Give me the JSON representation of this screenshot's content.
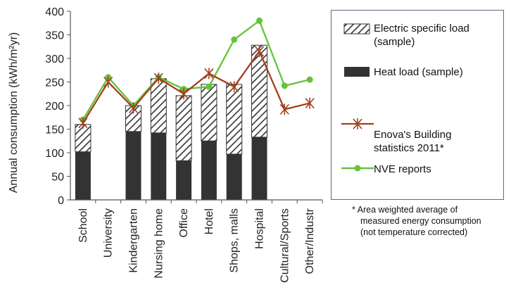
{
  "chart_data": {
    "type": "bar",
    "categories": [
      "School",
      "University",
      "Kindergarten",
      "Nursing home",
      "Office",
      "Hotel",
      "Shops, malls",
      "Hospital",
      "Cultural/Sports",
      "Other/Industr"
    ],
    "ylabel": "Annual consumption (kWh/m²yr)",
    "ylim": [
      0,
      400
    ],
    "yticks": [
      0,
      50,
      100,
      150,
      200,
      250,
      300,
      350,
      400
    ],
    "grid": false,
    "legend_position": "right",
    "series": [
      {
        "name": "Heat load (sample)",
        "kind": "stacked-bar",
        "color": "#333333",
        "values": [
          102,
          null,
          145,
          142,
          83,
          125,
          97,
          133,
          null,
          null
        ]
      },
      {
        "name": "Electric specific load (sample)",
        "kind": "stacked-bar",
        "pattern": "diagonal-hatch",
        "values": [
          58,
          null,
          55,
          115,
          138,
          120,
          148,
          195,
          null,
          null
        ]
      },
      {
        "name": "Enova's Building statistics 2011*",
        "kind": "line",
        "marker": "asterisk",
        "color": "#a0411f",
        "values": [
          163,
          250,
          195,
          258,
          225,
          268,
          240,
          315,
          192,
          205
        ]
      },
      {
        "name": "NVE reports",
        "kind": "line",
        "marker": "circle",
        "color": "#66c23a",
        "values": [
          170,
          260,
          200,
          260,
          235,
          240,
          340,
          380,
          242,
          255
        ]
      }
    ],
    "footnote": [
      "* Area weighted average of",
      "measured energy consumption",
      "(not temperature corrected)"
    ]
  }
}
